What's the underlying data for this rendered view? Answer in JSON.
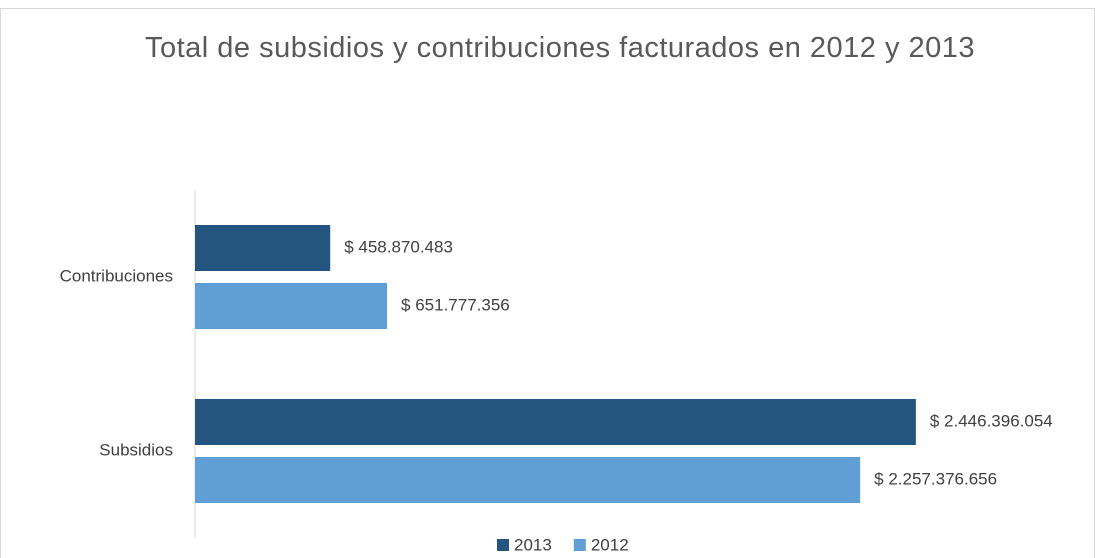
{
  "chart_data": {
    "type": "bar",
    "orientation": "horizontal",
    "title": "Total de subsidios y contribuciones facturados en 2012 y 2013",
    "categories": [
      "Contribuciones",
      "Subsidios"
    ],
    "series": [
      {
        "name": "2013",
        "color": "#245480",
        "values": [
          458870483,
          2446396054
        ],
        "value_labels": [
          "$ 458.870.483",
          "$ 2.446.396.054"
        ]
      },
      {
        "name": "2012",
        "color": "#5f9fd6",
        "values": [
          651777356,
          2257376656
        ],
        "value_labels": [
          "$ 651.777.356",
          "$ 2.257.376.656"
        ]
      }
    ],
    "xlim": [
      0,
      3000000000
    ],
    "legend": "bottom"
  }
}
